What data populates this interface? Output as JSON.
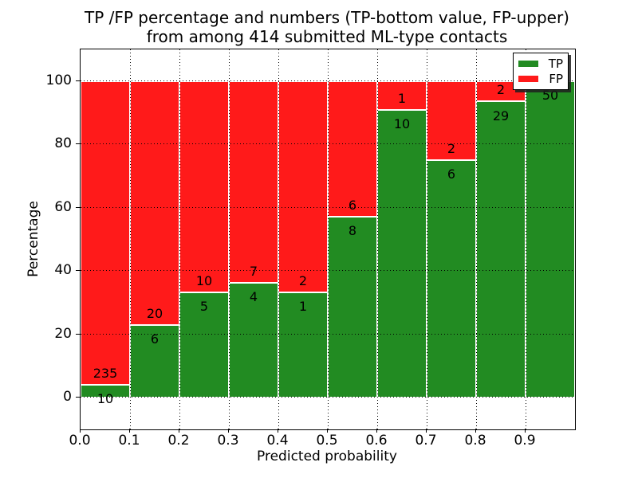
{
  "chart_data": {
    "type": "bar",
    "stacked": true,
    "title_lines": [
      "TP /FP percentage and numbers (TP-bottom value, FP-upper)",
      "from among 414 submitted ML-type contacts"
    ],
    "xlabel": "Predicted probability",
    "ylabel": "Percentage",
    "x_tick_labels": [
      "0.0",
      "0.1",
      "0.2",
      "0.3",
      "0.4",
      "0.5",
      "0.6",
      "0.7",
      "0.8",
      "0.9"
    ],
    "y_tick_values": [
      0,
      20,
      40,
      60,
      80,
      100
    ],
    "xlim": [
      0.0,
      1.0
    ],
    "ylim": [
      -10,
      110
    ],
    "grid": "dotted",
    "bar_width": 0.1,
    "legend": {
      "position": "upper right",
      "entries": [
        {
          "label": "TP",
          "color": "#228b22"
        },
        {
          "label": "FP",
          "color": "#ff1a1a"
        }
      ]
    },
    "series": [
      {
        "name": "TP",
        "color": "#228b22",
        "values": [
          10,
          6,
          5,
          4,
          1,
          8,
          10,
          6,
          29,
          50
        ]
      },
      {
        "name": "FP",
        "color": "#ff1a1a",
        "values": [
          235,
          20,
          10,
          7,
          2,
          6,
          1,
          2,
          2,
          0
        ]
      }
    ],
    "bins": [
      {
        "x0": 0.0,
        "x1": 0.1,
        "tp": 10,
        "fp": 235
      },
      {
        "x0": 0.1,
        "x1": 0.2,
        "tp": 6,
        "fp": 20
      },
      {
        "x0": 0.2,
        "x1": 0.3,
        "tp": 5,
        "fp": 10
      },
      {
        "x0": 0.3,
        "x1": 0.4,
        "tp": 4,
        "fp": 7
      },
      {
        "x0": 0.4,
        "x1": 0.5,
        "tp": 1,
        "fp": 2
      },
      {
        "x0": 0.5,
        "x1": 0.6,
        "tp": 8,
        "fp": 6
      },
      {
        "x0": 0.6,
        "x1": 0.7,
        "tp": 10,
        "fp": 1
      },
      {
        "x0": 0.7,
        "x1": 0.8,
        "tp": 6,
        "fp": 2
      },
      {
        "x0": 0.8,
        "x1": 0.9,
        "tp": 29,
        "fp": 2
      },
      {
        "x0": 0.9,
        "x1": 1.0,
        "tp": 50,
        "fp": 0,
        "fp_label_visible": false
      }
    ],
    "colors": {
      "tp": "#228b22",
      "fp": "#ff1a1a",
      "grid": "#000000",
      "text": "#000000",
      "background": "#ffffff",
      "bar_edge": "#ffffff"
    }
  }
}
